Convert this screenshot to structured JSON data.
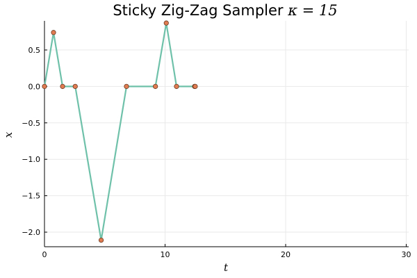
{
  "chart_data": {
    "type": "line",
    "title": {
      "text": "Sticky Zig-Zag Sampler ",
      "math": "κ = 15"
    },
    "xlabel": "t",
    "ylabel": "x",
    "xlim": [
      0,
      30.2
    ],
    "ylim": [
      -2.2,
      0.9
    ],
    "xticks": [
      0,
      10,
      20,
      30
    ],
    "xtick_labels": [
      "0",
      "10",
      "20",
      "30"
    ],
    "yticks": [
      0.5,
      0.0,
      -0.5,
      -1.0,
      -1.5,
      -2.0
    ],
    "ytick_labels": [
      "0.5",
      "0.0",
      "−0.5",
      "−1.0",
      "−1.5",
      "−2.0"
    ],
    "grid": true,
    "legend": "none",
    "series": [
      {
        "x": [
          0.0,
          0.75,
          1.5,
          2.55,
          4.7,
          6.8,
          9.2,
          10.1,
          10.95,
          12.45,
          12.5
        ],
        "values": [
          0.0,
          0.74,
          0.0,
          0.0,
          -2.11,
          0.0,
          0.0,
          0.87,
          0.0,
          0.0,
          0.0
        ],
        "line_color": "#6fc1a9",
        "marker_color": "#e07b52",
        "marker_edge": "#6b3a20"
      }
    ]
  }
}
